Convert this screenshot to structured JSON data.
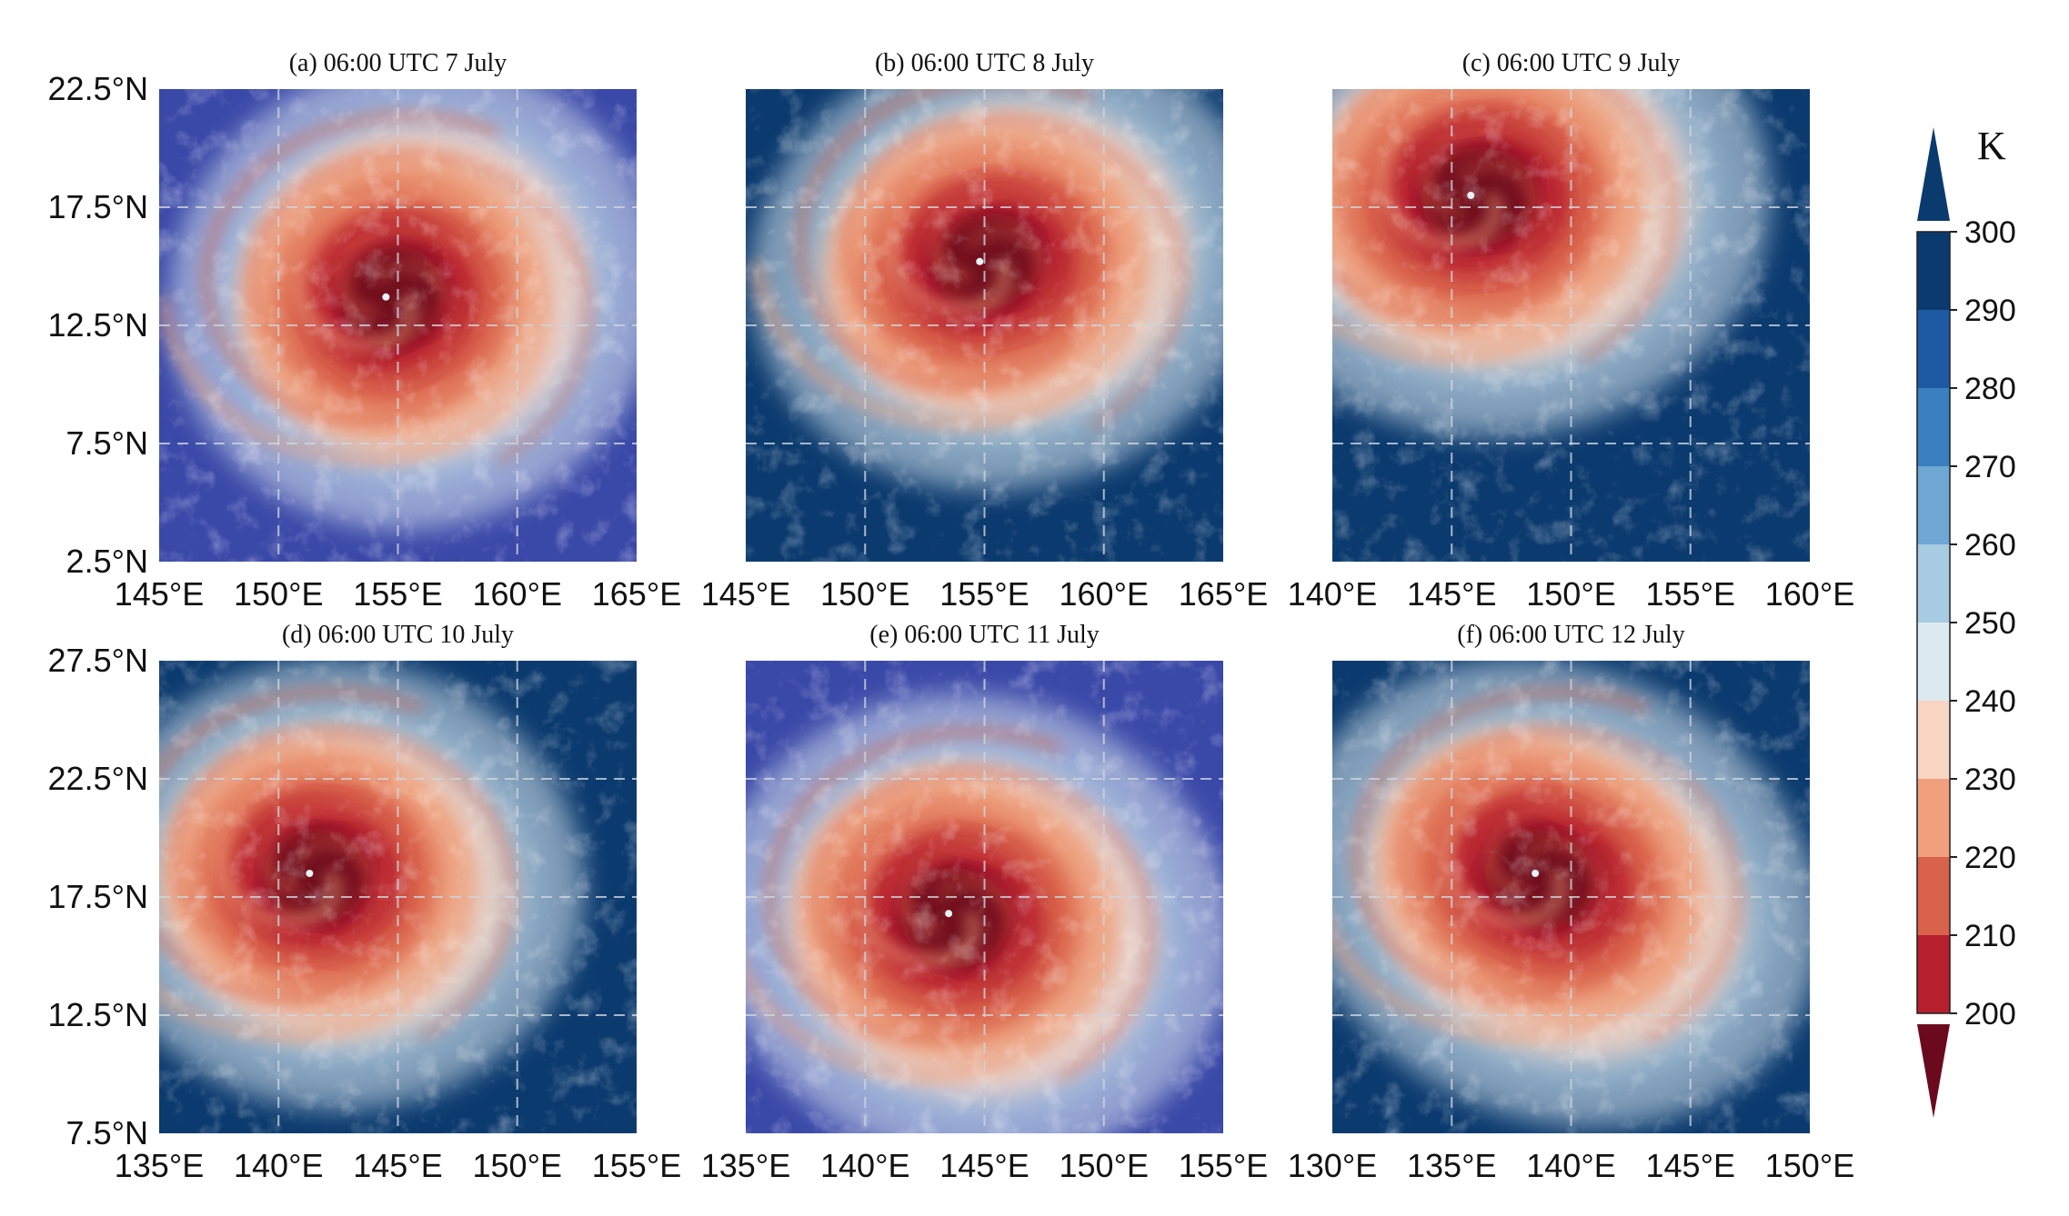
{
  "figure": {
    "panels": [
      {
        "title": "(a) 06:00 UTC 7 July",
        "lat_labels": [
          "22.5°N",
          "17.5°N",
          "12.5°N",
          "7.5°N",
          "2.5°N"
        ],
        "lon_labels": [
          "145°E",
          "150°E",
          "155°E",
          "160°E",
          "165°E"
        ],
        "lat_range": [
          2.5,
          22.5
        ],
        "lon_range": [
          145,
          165
        ],
        "background": "#3a48a8",
        "eye": [
          154.5,
          13.7
        ]
      },
      {
        "title": "(b) 06:00 UTC 8 July",
        "lat_labels": [],
        "lon_labels": [
          "145°E",
          "150°E",
          "155°E",
          "160°E",
          "165°E"
        ],
        "lat_range": [
          2.5,
          22.5
        ],
        "lon_range": [
          145,
          165
        ],
        "background": "#0b3a6e",
        "eye": [
          154.8,
          15.2
        ]
      },
      {
        "title": "(c) 06:00 UTC 9 July",
        "lat_labels": [],
        "lon_labels": [
          "140°E",
          "145°E",
          "150°E",
          "155°E",
          "160°E"
        ],
        "lat_range": [
          2.5,
          22.5
        ],
        "lon_range": [
          140,
          160
        ],
        "background": "#0b3a6e",
        "eye": [
          145.8,
          18.0
        ]
      },
      {
        "title": "(d) 06:00 UTC 10 July",
        "lat_labels": [
          "27.5°N",
          "22.5°N",
          "17.5°N",
          "12.5°N",
          "7.5°N"
        ],
        "lon_labels": [
          "135°E",
          "140°E",
          "145°E",
          "150°E",
          "155°E"
        ],
        "lat_range": [
          7.5,
          27.5
        ],
        "lon_range": [
          135,
          155
        ],
        "background": "#0b3a6e",
        "eye": [
          141.3,
          18.5
        ]
      },
      {
        "title": "(e) 06:00 UTC 11 July",
        "lat_labels": [],
        "lon_labels": [
          "135°E",
          "140°E",
          "145°E",
          "150°E",
          "155°E"
        ],
        "lat_range": [
          7.5,
          27.5
        ],
        "lon_range": [
          135,
          155
        ],
        "background": "#3a48a8",
        "eye": [
          143.5,
          16.8
        ]
      },
      {
        "title": "(f) 06:00 UTC 12 July",
        "lat_labels": [],
        "lon_labels": [
          "130°E",
          "135°E",
          "140°E",
          "145°E",
          "150°E"
        ],
        "lat_range": [
          7.5,
          27.5
        ],
        "lon_range": [
          130,
          150
        ],
        "background": "#0b3a6e",
        "eye": [
          138.5,
          18.5
        ]
      }
    ],
    "colorbar": {
      "unit": "K",
      "ticks": [
        "300",
        "290",
        "280",
        "270",
        "260",
        "250",
        "240",
        "230",
        "220",
        "210",
        "200"
      ],
      "colors": [
        "#0b3a6e",
        "#1d5aa3",
        "#3a7fbf",
        "#6ea7d3",
        "#a8cce4",
        "#dde9f1",
        "#f8d4c2",
        "#f0a07c",
        "#d9624a",
        "#b51f2e",
        "#6b0a1e"
      ]
    }
  }
}
